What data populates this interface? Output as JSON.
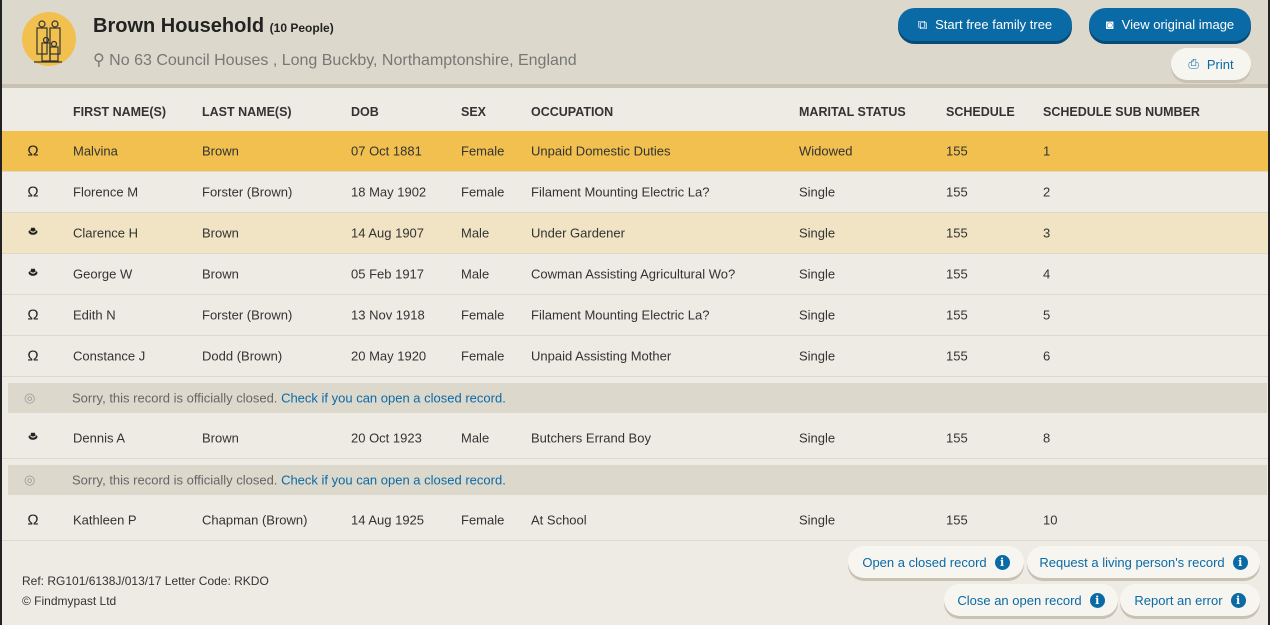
{
  "header": {
    "title": "Brown Household",
    "count": "(10 People)",
    "address": "No 63 Council Houses , Long Buckby, Northamptonshire, England",
    "buttons": {
      "tree": "Start free family tree",
      "image": "View original image",
      "print": "Print"
    }
  },
  "columns": [
    "FIRST NAME(S)",
    "LAST NAME(S)",
    "DOB",
    "SEX",
    "OCCUPATION",
    "MARITAL STATUS",
    "SCHEDULE",
    "SCHEDULE SUB NUMBER"
  ],
  "rows": [
    {
      "type": "person",
      "icon": "female-icon",
      "first": "Malvina",
      "last": "Brown",
      "dob": "07 Oct 1881",
      "sex": "Female",
      "occupation": "Unpaid Domestic Duties",
      "marital": "Widowed",
      "schedule": "155",
      "sub": "1",
      "state": "selected"
    },
    {
      "type": "person",
      "icon": "female-icon",
      "first": "Florence M",
      "last": "Forster (Brown)",
      "dob": "18 May 1902",
      "sex": "Female",
      "occupation": "Filament Mounting Electric La?",
      "marital": "Single",
      "schedule": "155",
      "sub": "2"
    },
    {
      "type": "person",
      "icon": "male-icon",
      "first": "Clarence H",
      "last": "Brown",
      "dob": "14 Aug 1907",
      "sex": "Male",
      "occupation": "Under Gardener",
      "marital": "Single",
      "schedule": "155",
      "sub": "3",
      "state": "hover"
    },
    {
      "type": "person",
      "icon": "male-icon",
      "first": "George W",
      "last": "Brown",
      "dob": "05 Feb 1917",
      "sex": "Male",
      "occupation": "Cowman Assisting Agricultural Wo?",
      "marital": "Single",
      "schedule": "155",
      "sub": "4"
    },
    {
      "type": "person",
      "icon": "female-icon",
      "first": "Edith N",
      "last": "Forster (Brown)",
      "dob": "13 Nov 1918",
      "sex": "Female",
      "occupation": "Filament Mounting Electric La?",
      "marital": "Single",
      "schedule": "155",
      "sub": "5"
    },
    {
      "type": "person",
      "icon": "female-icon",
      "first": "Constance J",
      "last": "Dodd (Brown)",
      "dob": "20 May 1920",
      "sex": "Female",
      "occupation": "Unpaid Assisting Mother",
      "marital": "Single",
      "schedule": "155",
      "sub": "6"
    },
    {
      "type": "closed",
      "text": "Sorry, this record is officially closed.",
      "link": "Check if you can open a closed record."
    },
    {
      "type": "person",
      "icon": "male-icon",
      "first": "Dennis A",
      "last": "Brown",
      "dob": "20 Oct 1923",
      "sex": "Male",
      "occupation": "Butchers Errand Boy",
      "marital": "Single",
      "schedule": "155",
      "sub": "8"
    },
    {
      "type": "closed",
      "text": "Sorry, this record is officially closed.",
      "link": "Check if you can open a closed record."
    },
    {
      "type": "person",
      "icon": "female-icon",
      "first": "Kathleen P",
      "last": "Chapman (Brown)",
      "dob": "14 Aug 1925",
      "sex": "Female",
      "occupation": "At School",
      "marital": "Single",
      "schedule": "155",
      "sub": "10"
    }
  ],
  "footer": {
    "ref": "Ref: RG101/6138J/013/17 Letter Code: RKDO",
    "copyright": "© Findmypast Ltd",
    "actions": [
      "Open a closed record",
      "Request a living person's record",
      "Close an open record",
      "Report an error"
    ]
  },
  "colors": {
    "accent": "#0a6aa6",
    "selected": "#f1c04f",
    "hover": "#f1e4c4",
    "header_bg": "#ddd8cc"
  }
}
